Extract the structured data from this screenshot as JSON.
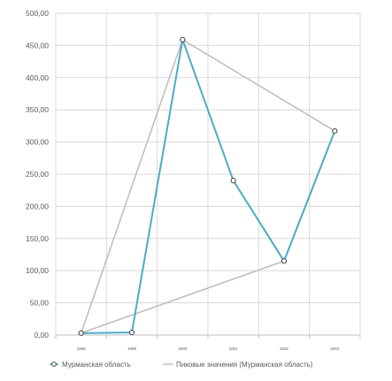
{
  "chart_data": {
    "type": "line",
    "categories": [
      "1998",
      "1999",
      "2000",
      "2001",
      "2002",
      "2003"
    ],
    "ylim": [
      0,
      500
    ],
    "yticks": [
      "0,00",
      "50,00",
      "100,00",
      "150,00",
      "200,00",
      "250,00",
      "300,00",
      "350,00",
      "400,00",
      "450,00",
      "500,00"
    ],
    "grid": true,
    "legend_position": "bottom",
    "series": [
      {
        "name": "Мурманская область",
        "values": [
          3,
          4,
          459,
          240,
          115,
          317
        ],
        "color": "#4BACC6",
        "marker": "circle"
      },
      {
        "name": "Пиковые значения (Мурманская область)",
        "points": [
          {
            "x": "1998",
            "y": 3
          },
          {
            "x": "2000",
            "y": 459
          },
          {
            "x": "2003",
            "y": 317
          },
          {
            "x": "2002",
            "y": 115
          },
          {
            "x": "1998",
            "y": 3
          }
        ],
        "color": "#BFBFBF"
      }
    ]
  }
}
